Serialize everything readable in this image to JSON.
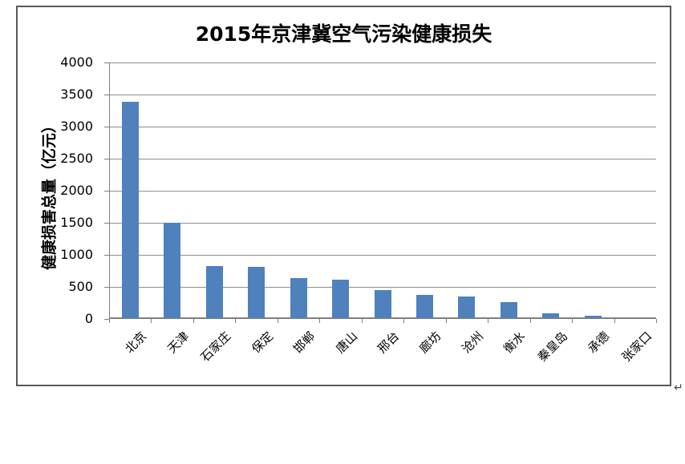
{
  "page": {
    "return_mark": "↵"
  },
  "chart_data": {
    "type": "bar",
    "title": "2015年京津冀空气污染健康损失",
    "ylabel": "健康损害总量（亿元）",
    "xlabel": "",
    "categories": [
      "北京",
      "天津",
      "石家庄",
      "保定",
      "邯郸",
      "唐山",
      "邢台",
      "廊坊",
      "沧州",
      "衡水",
      "秦皇岛",
      "承德",
      "张家口"
    ],
    "values": [
      3380,
      1490,
      810,
      795,
      630,
      595,
      440,
      360,
      335,
      250,
      70,
      35,
      0
    ],
    "ylim": [
      0,
      4000
    ],
    "ytick_step": 500,
    "grid": true,
    "legend": false,
    "bar_color": "#4F81BD",
    "gridline_color": "#8e8e8e",
    "axis_color": "#7f7f7f",
    "border_color": "#595959"
  }
}
